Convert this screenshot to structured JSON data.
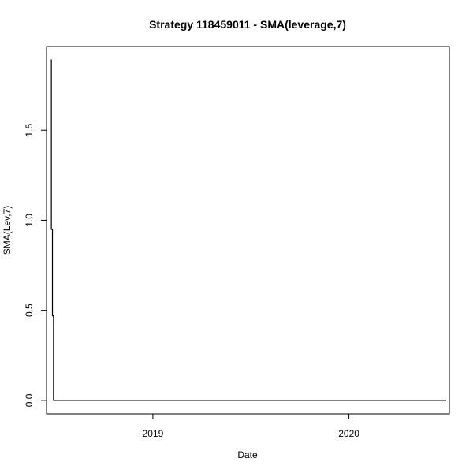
{
  "chart_data": {
    "type": "line",
    "title": "Strategy 118459011 - SMA(leverage,7)",
    "xlabel": "Date",
    "ylabel": "SMA(Lev,7)",
    "x_axis": {
      "type": "date",
      "range": [
        "2018-06-17",
        "2020-07-06"
      ],
      "ticks": [
        "2019-01-01",
        "2020-01-01"
      ],
      "tick_labels": [
        "2019",
        "2020"
      ]
    },
    "y_axis": {
      "range": [
        -0.075,
        1.965
      ],
      "ticks": [
        0.0,
        0.5,
        1.0,
        1.5
      ],
      "tick_labels": [
        "0.0",
        "0.5",
        "1.0",
        "1.5"
      ]
    },
    "grid": false,
    "legend": "none",
    "series": [
      {
        "color": "#000000",
        "points": [
          [
            "2018-06-25",
            1.89
          ],
          [
            "2018-06-26",
            0.95
          ],
          [
            "2018-06-27",
            0.95
          ],
          [
            "2018-06-28",
            0.47
          ],
          [
            "2018-06-29",
            0.47
          ],
          [
            "2018-06-30",
            0.0
          ],
          [
            "2020-06-30",
            0.0
          ]
        ]
      }
    ]
  }
}
